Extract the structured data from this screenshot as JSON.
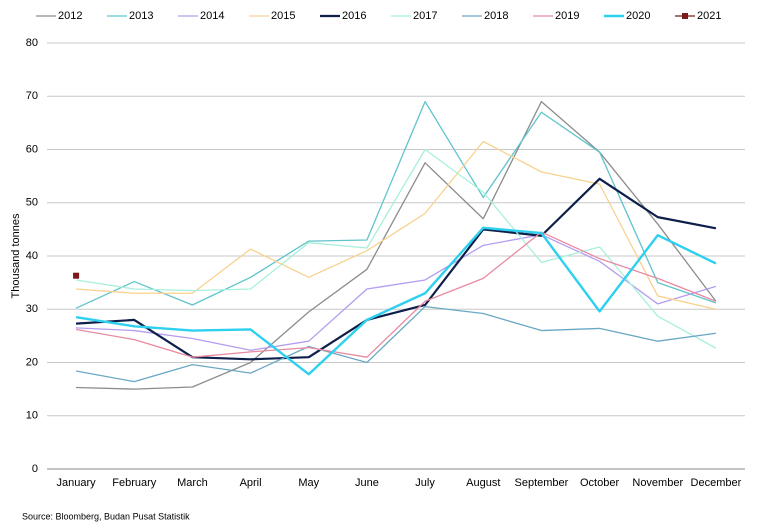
{
  "chart_data": {
    "type": "line",
    "y_label": "Thousand tonnes",
    "source": "Source: Bloomberg, Budan Pusat Statistik",
    "categories": [
      "January",
      "February",
      "March",
      "April",
      "May",
      "June",
      "July",
      "August",
      "September",
      "October",
      "November",
      "December"
    ],
    "ylim": [
      0,
      80
    ],
    "yticks": [
      0,
      10,
      20,
      30,
      40,
      50,
      60,
      70,
      80
    ],
    "grid": true,
    "legend": "top",
    "series": [
      {
        "name": "2012",
        "color": "#8c8c8c",
        "width": 1.3,
        "values": [
          15.3,
          15.0,
          15.4,
          20.0,
          29.5,
          37.5,
          57.5,
          47.0,
          69.0,
          59.5,
          46.0,
          31.5
        ]
      },
      {
        "name": "2013",
        "color": "#5fc4cc",
        "width": 1.3,
        "values": [
          30.2,
          35.2,
          30.8,
          36.0,
          42.8,
          43.0,
          69.0,
          51.0,
          67.0,
          59.5,
          35.0,
          31.2
        ]
      },
      {
        "name": "2014",
        "color": "#b49cf0",
        "width": 1.3,
        "values": [
          26.5,
          26.0,
          24.5,
          22.3,
          24.0,
          33.8,
          35.5,
          42.0,
          44.0,
          39.0,
          31.0,
          34.3
        ]
      },
      {
        "name": "2015",
        "color": "#f7d28f",
        "width": 1.3,
        "values": [
          33.8,
          33.0,
          33.0,
          41.3,
          36.0,
          41.0,
          48.0,
          61.5,
          55.8,
          53.5,
          32.5,
          30.0
        ]
      },
      {
        "name": "2016",
        "color": "#0d1f4a",
        "width": 2.2,
        "values": [
          27.3,
          28.0,
          21.0,
          20.6,
          21.0,
          28.0,
          30.8,
          45.0,
          43.8,
          54.5,
          47.3,
          45.2
        ]
      },
      {
        "name": "2017",
        "color": "#a8f0dc",
        "width": 1.3,
        "values": [
          35.5,
          33.8,
          33.5,
          33.8,
          42.5,
          41.5,
          60.0,
          52.0,
          38.8,
          41.7,
          28.7,
          22.7
        ]
      },
      {
        "name": "2018",
        "color": "#6aa8c4",
        "width": 1.3,
        "values": [
          18.4,
          16.4,
          19.6,
          18.0,
          23.0,
          20.0,
          30.5,
          29.2,
          26.0,
          26.4,
          24.0,
          25.5
        ]
      },
      {
        "name": "2019",
        "color": "#e88aa0",
        "width": 1.3,
        "values": [
          26.2,
          24.3,
          21.0,
          22.0,
          22.8,
          21.0,
          31.5,
          35.8,
          44.5,
          39.5,
          35.8,
          31.5
        ]
      },
      {
        "name": "2020",
        "color": "#2ed0f0",
        "width": 2.4,
        "values": [
          28.5,
          26.8,
          26.0,
          26.2,
          17.8,
          28.0,
          33.0,
          45.3,
          44.3,
          29.6,
          43.9,
          38.6
        ]
      },
      {
        "name": "2021",
        "color": "#7a1a1a",
        "width": 1.3,
        "marker": "square",
        "values": [
          36.3,
          null,
          null,
          null,
          null,
          null,
          null,
          null,
          null,
          null,
          null,
          null
        ]
      }
    ]
  }
}
